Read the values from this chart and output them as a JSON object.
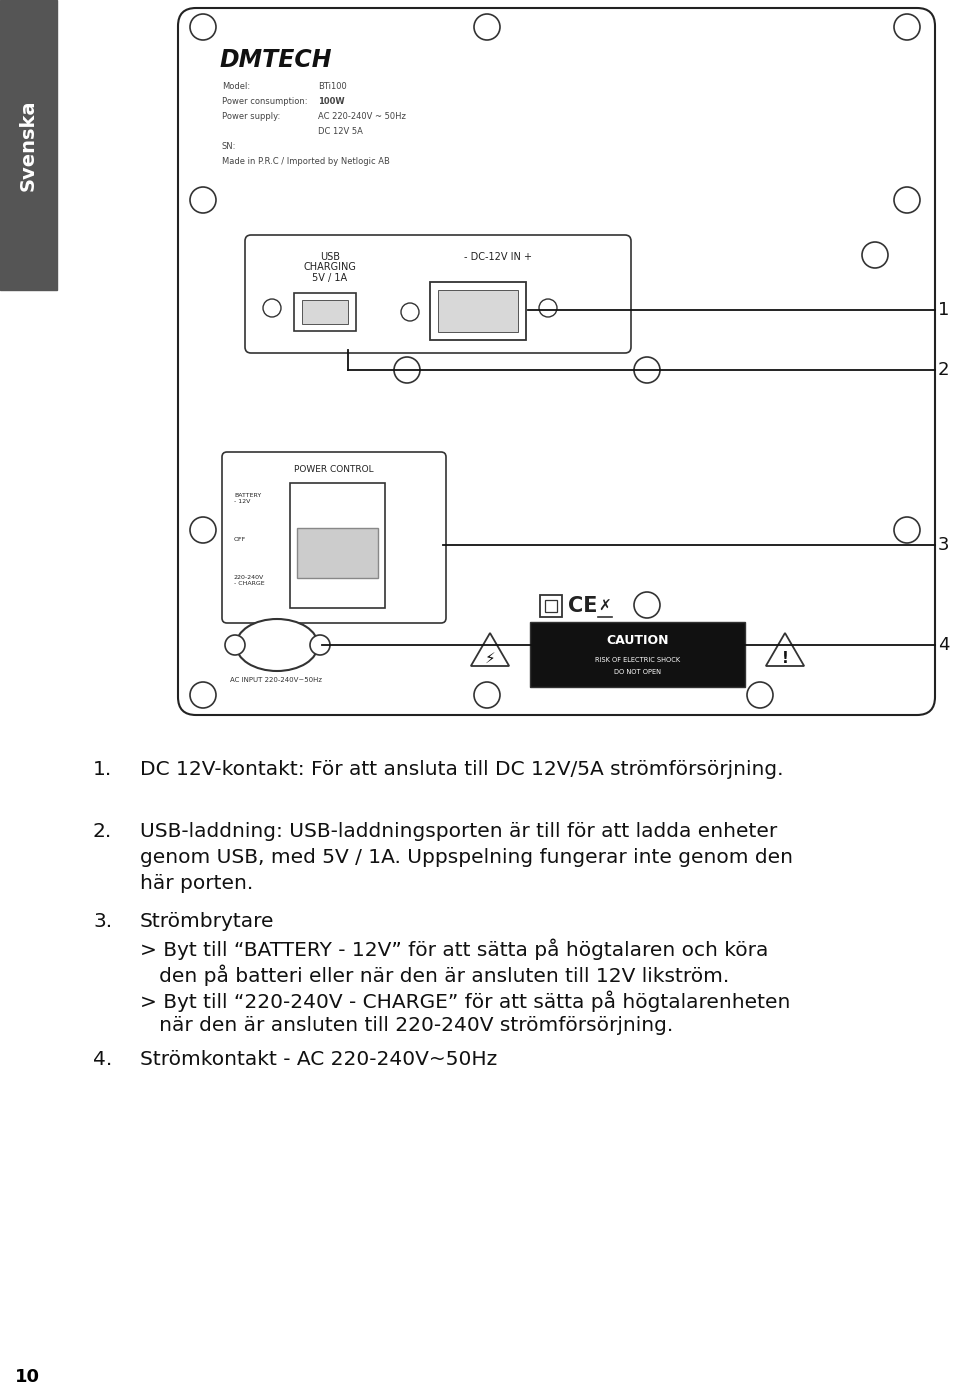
{
  "bg_color": "#ffffff",
  "sidebar_color": "#555555",
  "sidebar_text": "Svenska",
  "page_num": "10",
  "brand": "DMTECH",
  "spec_lines": [
    [
      "Model:",
      "BTi100"
    ],
    [
      "Power consumption:",
      "100W"
    ],
    [
      "Power supply:",
      "AC 220-240V ~ 50Hz"
    ],
    [
      "",
      "DC 12V 5A"
    ],
    [
      "SN:",
      ""
    ],
    [
      "Made in P.R.C / Imported by Netlogic AB",
      ""
    ]
  ],
  "items": [
    {
      "num": "1.",
      "text": "DC 12V-kontakt: För att ansluta till DC 12V/5A strömförsörjning."
    },
    {
      "num": "2.",
      "text": "USB-laddning: USB-laddningsporten är till för att ladda enheter\ngenom USB, med 5V / 1A. Uppspelning fungerar inte genom den\nhär porten."
    },
    {
      "num": "3.",
      "text": "Strömbrytare\n> Byt till “BATTERY - 12V” för att sätta på högtalaren och köra\n   den på batteri eller när den är ansluten till 12V likström.\n> Byt till “220-240V - CHARGE” för att sätta på högtalarenheten\n   när den är ansluten till 220-240V strömförsörjning."
    },
    {
      "num": "4.",
      "text": "Strömkontakt - AC 220-240V~50Hz"
    }
  ]
}
